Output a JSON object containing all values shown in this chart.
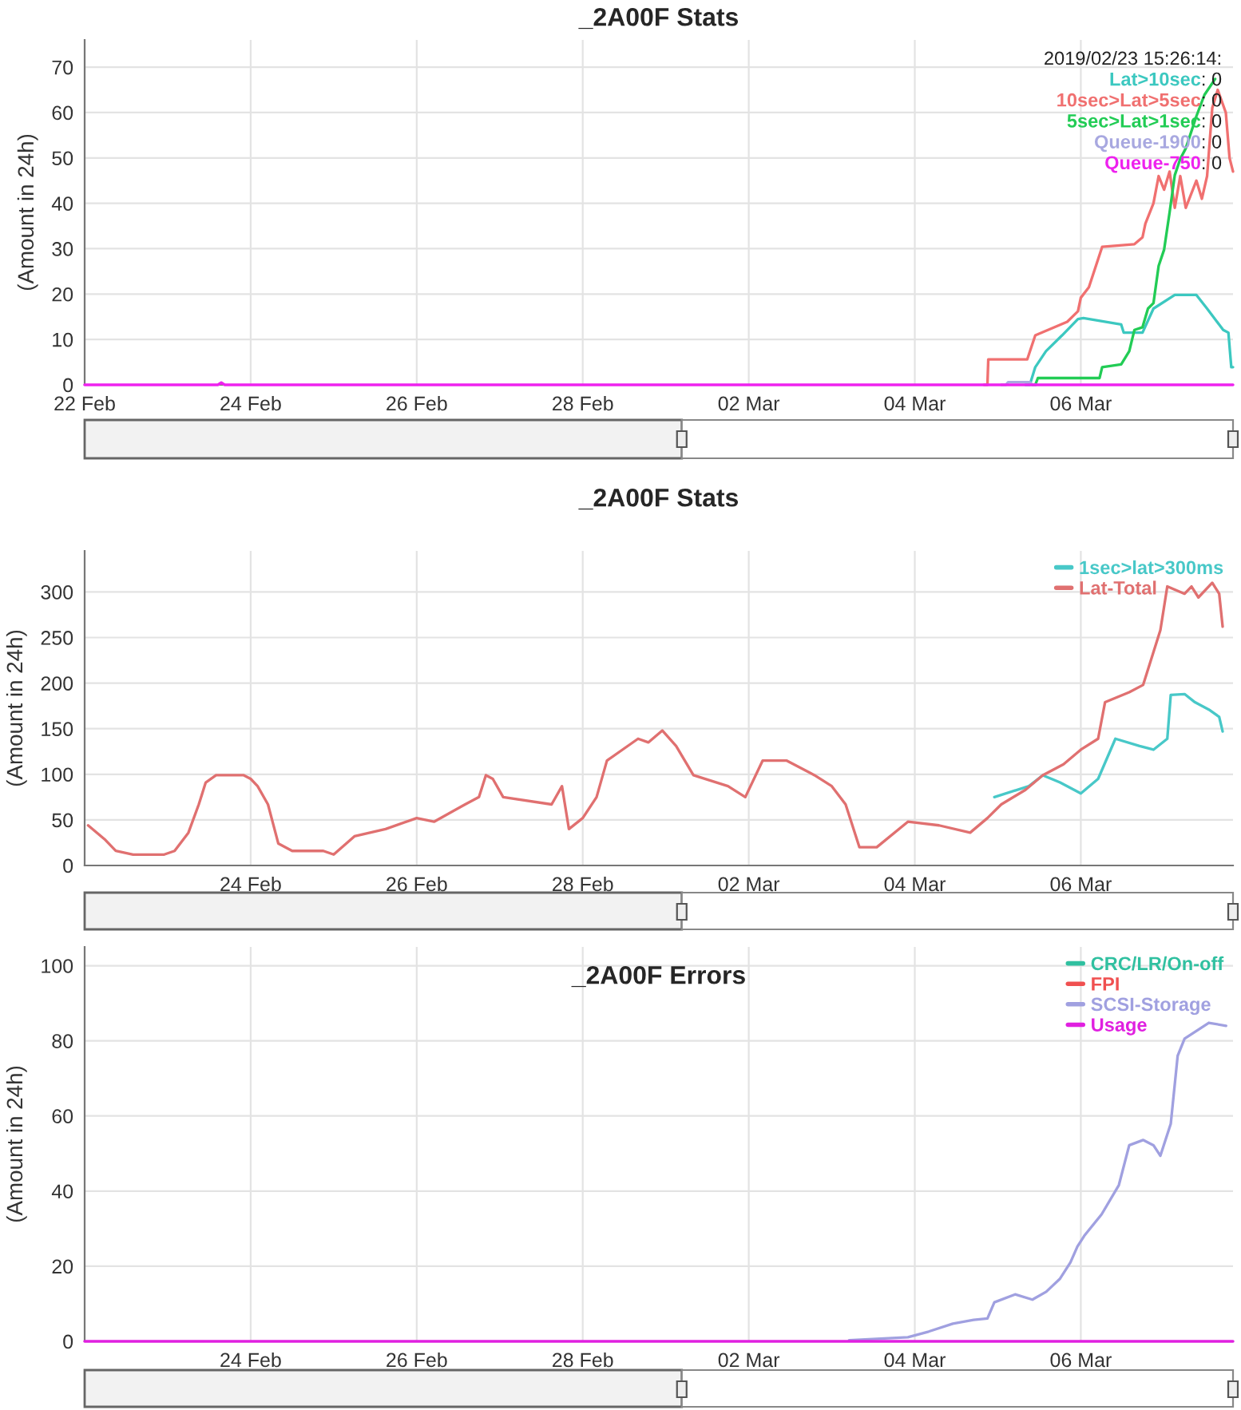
{
  "chart_data": [
    {
      "type": "line",
      "title": "_2A00F Stats",
      "ylabel": "(Amount in 24h)",
      "xlim": [
        "2019-02-22T00:00",
        "2019-03-07T20:00"
      ],
      "ylim": [
        0,
        76
      ],
      "xticks": [
        {
          "value": "2019-02-22",
          "label": "22 Feb"
        },
        {
          "value": "2019-02-24",
          "label": "24 Feb"
        },
        {
          "value": "2019-02-26",
          "label": "26 Feb"
        },
        {
          "value": "2019-02-28",
          "label": "28 Feb"
        },
        {
          "value": "2019-03-02",
          "label": "02 Mar"
        },
        {
          "value": "2019-03-04",
          "label": "04 Mar"
        },
        {
          "value": "2019-03-06",
          "label": "06 Mar"
        }
      ],
      "yticks": [
        0,
        10,
        20,
        30,
        40,
        50,
        60,
        70
      ],
      "grid": true,
      "legend": "top right",
      "marker": "none",
      "line_style": "solid",
      "annotations": [
        "2019/02/23 15:26:14:",
        ": 0",
        ": 0",
        ": 0",
        ": 0",
        ": 0"
      ],
      "series": [
        {
          "name": "Lat>10sec",
          "color": "#3cc8c0",
          "x": [
            "2019-03-05T08:00",
            "2019-03-05T09:15",
            "2019-03-05T10:50",
            "2019-03-05T13:55",
            "2019-03-05T18:35",
            "2019-03-05T23:10",
            "2019-03-06T00:45",
            "2019-03-06T11:40",
            "2019-03-06T12:25",
            "2019-03-06T17:50",
            "2019-03-06T21:00",
            "2019-03-07T03:10",
            "2019-03-07T09:25",
            "2019-03-07T12:30",
            "2019-03-07T17:10",
            "2019-03-07T18:40",
            "2019-03-07T19:30",
            "2019-03-07T20:00"
          ],
          "values": [
            0,
            0,
            3.9,
            7.4,
            10.9,
            14.5,
            14.7,
            13.3,
            11.5,
            11.5,
            16.8,
            19.8,
            19.8,
            16.8,
            12.1,
            11.5,
            3.9,
            3.9
          ]
        },
        {
          "name": "10sec>Lat>5sec",
          "color": "#f07070",
          "x": [
            "2019-03-04T20:00",
            "2019-03-04T21:00",
            "2019-03-04T21:15",
            "2019-03-05T08:30",
            "2019-03-05T10:50",
            "2019-03-05T20:05",
            "2019-03-05T23:10",
            "2019-03-06T00:00",
            "2019-03-06T02:20",
            "2019-03-06T06:10",
            "2019-03-06T15:30",
            "2019-03-06T17:50",
            "2019-03-06T18:40",
            "2019-03-06T21:00",
            "2019-03-06T22:30",
            "2019-03-07T00:05",
            "2019-03-07T01:40",
            "2019-03-07T03:10",
            "2019-03-07T04:45",
            "2019-03-07T06:20",
            "2019-03-07T09:25",
            "2019-03-07T11:00",
            "2019-03-07T12:30",
            "2019-03-07T14:00",
            "2019-03-07T15:35",
            "2019-03-07T17:55",
            "2019-03-07T19:00",
            "2019-03-07T20:00"
          ],
          "values": [
            0,
            0,
            5.6,
            5.6,
            10.9,
            13.9,
            16.2,
            19.2,
            21.5,
            30.4,
            31,
            32.5,
            35.5,
            40,
            46,
            43,
            47,
            39,
            46,
            39,
            45,
            41,
            46,
            61,
            65,
            60,
            50,
            47
          ]
        },
        {
          "name": "5sec>Lat>1sec",
          "color": "#22cc55",
          "x": [
            "2019-03-05T10:00",
            "2019-03-05T10:50",
            "2019-03-05T11:35",
            "2019-03-06T05:25",
            "2019-03-06T06:10",
            "2019-03-06T11:40",
            "2019-03-06T14:00",
            "2019-03-06T15:30",
            "2019-03-06T17:50",
            "2019-03-06T19:25",
            "2019-03-06T21:00",
            "2019-03-06T22:30",
            "2019-03-07T00:05",
            "2019-03-07T01:40",
            "2019-03-07T03:10",
            "2019-03-07T04:45",
            "2019-03-07T06:20",
            "2019-03-07T09:25",
            "2019-03-07T11:45",
            "2019-03-07T14:50"
          ],
          "values": [
            0,
            0,
            1.5,
            1.5,
            3.9,
            4.5,
            7.4,
            12.1,
            12.7,
            16.8,
            18,
            26.2,
            29.8,
            38,
            46.2,
            49.8,
            52.1,
            59.2,
            63.9,
            67.4
          ]
        },
        {
          "name": "Queue-1900",
          "color": "#a8a8e0",
          "x": [
            "2019-03-05T01:00",
            "2019-03-05T02:20",
            "2019-03-05T03:00",
            "2019-03-05T09:15",
            "2019-03-05T10:00",
            "2019-03-05T11:00"
          ],
          "values": [
            0,
            0,
            0.6,
            0.6,
            0,
            0
          ]
        },
        {
          "name": "Queue-750",
          "color": "#ee22ee",
          "x": [
            "2019-02-22T00:00",
            "2019-02-23T14:30",
            "2019-02-23T15:30",
            "2019-02-23T16:30",
            "2019-03-07T20:00"
          ],
          "values": [
            0,
            0,
            0.5,
            0,
            0
          ]
        }
      ]
    },
    {
      "type": "line",
      "title": "_2A00F Stats",
      "ylabel": "(Amount in 24h)",
      "xlim": [
        "2019-02-22T00:00",
        "2019-03-07T20:00"
      ],
      "ylim": [
        0,
        345
      ],
      "xticks": [
        {
          "value": "2019-02-24",
          "label": "24 Feb"
        },
        {
          "value": "2019-02-26",
          "label": "26 Feb"
        },
        {
          "value": "2019-02-28",
          "label": "28 Feb"
        },
        {
          "value": "2019-03-02",
          "label": "02 Mar"
        },
        {
          "value": "2019-03-04",
          "label": "04 Mar"
        },
        {
          "value": "2019-03-06",
          "label": "06 Mar"
        }
      ],
      "yticks": [
        0,
        50,
        100,
        150,
        200,
        250,
        300
      ],
      "grid": true,
      "legend": "top right",
      "marker": "none",
      "line_style": "solid",
      "series": [
        {
          "name": "1sec>lat>300ms",
          "color": "#48c8c8",
          "x": [
            "2019-03-04T23:00",
            "2019-03-05T09:00",
            "2019-03-05T13:00",
            "2019-03-05T18:00",
            "2019-03-06T00:00",
            "2019-03-06T05:00",
            "2019-03-06T10:00",
            "2019-03-06T17:00",
            "2019-03-06T21:00",
            "2019-03-07T01:00",
            "2019-03-07T02:00",
            "2019-03-07T06:00",
            "2019-03-07T09:00",
            "2019-03-07T13:00",
            "2019-03-07T16:00",
            "2019-03-07T17:00"
          ],
          "values": [
            75,
            87,
            99,
            91,
            79,
            95,
            139,
            131,
            127,
            139,
            187,
            188,
            179,
            171,
            163,
            147
          ]
        },
        {
          "name": "Lat-Total",
          "color": "#e07070",
          "x": [
            "2019-02-22T01:00",
            "2019-02-22T06:00",
            "2019-02-22T09:00",
            "2019-02-22T14:00",
            "2019-02-22T23:00",
            "2019-02-23T02:00",
            "2019-02-23T06:00",
            "2019-02-23T09:00",
            "2019-02-23T11:00",
            "2019-02-23T14:00",
            "2019-02-23T22:00",
            "2019-02-24T00:00",
            "2019-02-24T02:00",
            "2019-02-24T05:00",
            "2019-02-24T08:00",
            "2019-02-24T12:00",
            "2019-02-24T21:00",
            "2019-02-25T00:00",
            "2019-02-25T06:00",
            "2019-02-25T15:00",
            "2019-02-26T00:00",
            "2019-02-26T05:00",
            "2019-02-26T14:00",
            "2019-02-26T18:00",
            "2019-02-26T20:00",
            "2019-02-26T22:00",
            "2019-02-27T01:00",
            "2019-02-27T15:00",
            "2019-02-27T18:00",
            "2019-02-27T20:00",
            "2019-02-28T00:00",
            "2019-02-28T04:00",
            "2019-02-28T07:00",
            "2019-02-28T16:00",
            "2019-02-28T19:00",
            "2019-02-28T23:00",
            "2019-03-01T03:00",
            "2019-03-01T08:00",
            "2019-03-01T18:00",
            "2019-03-01T23:00",
            "2019-03-02T04:00",
            "2019-03-02T11:00",
            "2019-03-02T19:00",
            "2019-03-03T00:00",
            "2019-03-03T04:00",
            "2019-03-03T08:00",
            "2019-03-03T13:00",
            "2019-03-03T22:00",
            "2019-03-04T07:00",
            "2019-03-04T16:00",
            "2019-03-04T21:00",
            "2019-03-05T01:00",
            "2019-03-05T08:00",
            "2019-03-05T13:00",
            "2019-03-05T19:00",
            "2019-03-06T00:00",
            "2019-03-06T05:00",
            "2019-03-06T07:00",
            "2019-03-06T14:00",
            "2019-03-06T18:00",
            "2019-03-06T23:00",
            "2019-03-07T01:00",
            "2019-03-07T06:00",
            "2019-03-07T08:00",
            "2019-03-07T10:00",
            "2019-03-07T14:00",
            "2019-03-07T16:00",
            "2019-03-07T17:00"
          ],
          "values": [
            44,
            28,
            16,
            12,
            12,
            16,
            36,
            67,
            91,
            99,
            99,
            95,
            87,
            67,
            24,
            16,
            16,
            12,
            32,
            40,
            52,
            48,
            67,
            75,
            99,
            95,
            75,
            67,
            87,
            40,
            52,
            75,
            115,
            139,
            135,
            148,
            131,
            99,
            87,
            75,
            115,
            115,
            99,
            87,
            67,
            20,
            20,
            48,
            44,
            36,
            52,
            67,
            83,
            99,
            111,
            127,
            139,
            179,
            190,
            198,
            258,
            306,
            298,
            306,
            294,
            310,
            298,
            262
          ]
        }
      ]
    },
    {
      "type": "line",
      "title": "_2A00F Errors",
      "ylabel": "(Amount in 24h)",
      "xlim": [
        "2019-02-22T00:00",
        "2019-03-07T20:00"
      ],
      "ylim": [
        0,
        105
      ],
      "xticks": [
        {
          "value": "2019-02-24",
          "label": "24 Feb"
        },
        {
          "value": "2019-02-26",
          "label": "26 Feb"
        },
        {
          "value": "2019-02-28",
          "label": "28 Feb"
        },
        {
          "value": "2019-03-02",
          "label": "02 Mar"
        },
        {
          "value": "2019-03-04",
          "label": "04 Mar"
        },
        {
          "value": "2019-03-06",
          "label": "06 Mar"
        }
      ],
      "yticks": [
        0,
        20,
        40,
        60,
        80,
        100
      ],
      "grid": true,
      "legend": "top right",
      "marker": "none",
      "line_style": "solid",
      "series": [
        {
          "name": "CRC/LR/On-off",
          "color": "#30c0a0",
          "values": [
            null
          ]
        },
        {
          "name": "FPI",
          "color": "#f05050",
          "values": [
            null
          ]
        },
        {
          "name": "SCSI-Storage",
          "color": "#a0a0e0",
          "x": [
            "2019-03-03T05:00",
            "2019-03-03T22:00",
            "2019-03-04T04:00",
            "2019-03-04T11:00",
            "2019-03-04T17:00",
            "2019-03-04T21:00",
            "2019-03-04T23:00",
            "2019-03-05T05:00",
            "2019-03-05T10:00",
            "2019-03-05T14:00",
            "2019-03-05T18:00",
            "2019-03-05T21:00",
            "2019-03-05T23:00",
            "2019-03-06T01:00",
            "2019-03-06T06:00",
            "2019-03-06T11:00",
            "2019-03-06T14:00",
            "2019-03-06T18:00",
            "2019-03-06T21:00",
            "2019-03-06T23:00",
            "2019-03-07T02:00",
            "2019-03-07T04:00",
            "2019-03-07T06:00",
            "2019-03-07T13:00",
            "2019-03-07T18:00"
          ],
          "values": [
            0.3,
            1.1,
            2.6,
            4.7,
            5.7,
            6.1,
            10.4,
            12.5,
            11.1,
            13.2,
            16.7,
            21,
            25.2,
            28.1,
            33.8,
            41.6,
            52.2,
            53.6,
            52.2,
            49.4,
            57.9,
            76,
            80.6,
            84.8,
            84
          ]
        },
        {
          "name": "Usage",
          "color": "#e020e0",
          "x": [
            "2019-02-22T00:00",
            "2019-03-07T20:00"
          ],
          "values": [
            0,
            0
          ]
        }
      ]
    }
  ]
}
